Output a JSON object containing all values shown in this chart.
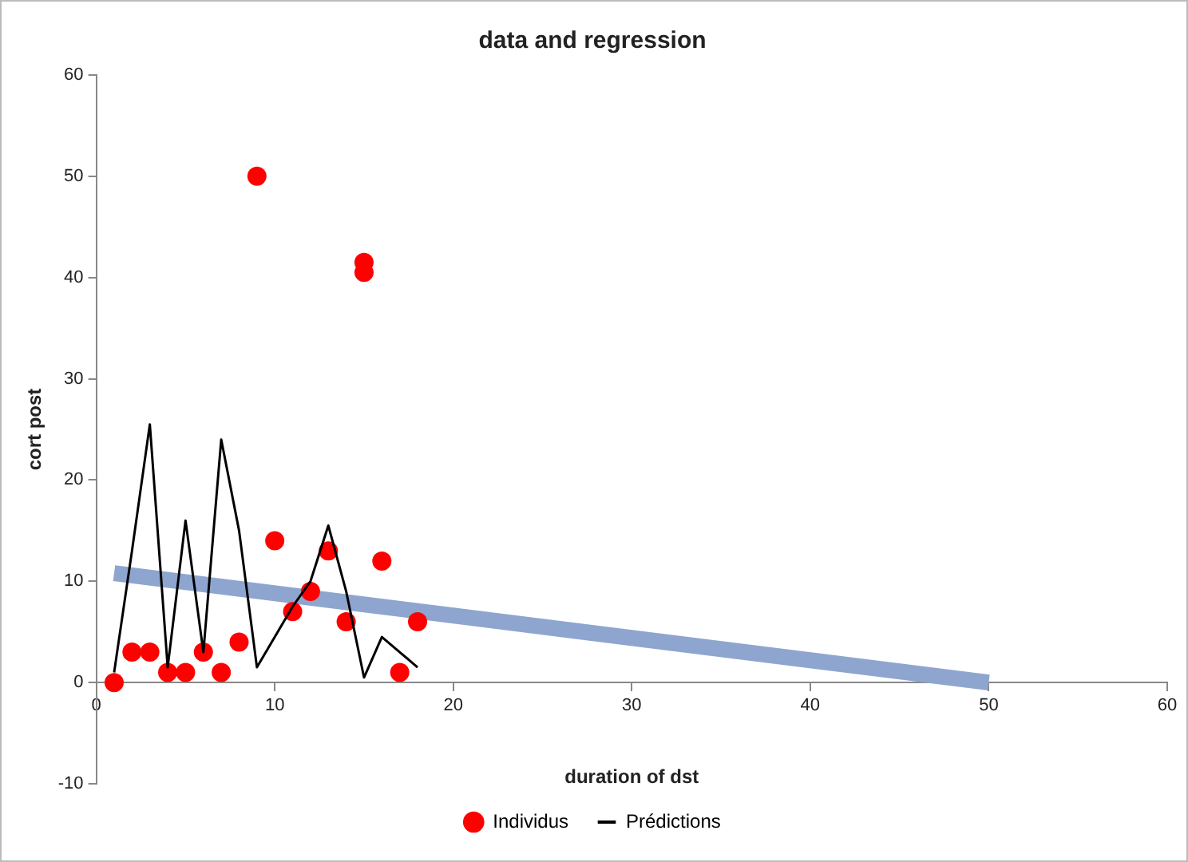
{
  "chart_data": {
    "type": "scatter",
    "title": "data and regression",
    "xlabel": "duration of dst",
    "ylabel": "cort post",
    "xlim": [
      0,
      60
    ],
    "xticks": [
      0,
      10,
      20,
      30,
      40,
      50,
      60
    ],
    "ylim": [
      -10,
      60
    ],
    "yticks": [
      -10,
      0,
      10,
      20,
      30,
      40,
      50,
      60
    ],
    "grid": false,
    "legend": "bottom",
    "series": [
      {
        "type": "line",
        "color": "#8ea5cf",
        "marker": "none",
        "x": [
          1,
          50
        ],
        "values": [
          10.8,
          0
        ]
      },
      {
        "name": "Individus",
        "type": "scatter",
        "color": "#ff0000",
        "marker": "circle",
        "x": [
          1,
          2,
          3,
          4,
          5,
          6,
          7,
          8,
          9,
          10,
          11,
          12,
          13,
          14,
          15,
          15,
          16,
          17,
          18
        ],
        "values": [
          0,
          3,
          3,
          1,
          1,
          3,
          1,
          4,
          50,
          14,
          7,
          9,
          13,
          6,
          41.5,
          40.5,
          12,
          1,
          6
        ]
      },
      {
        "name": "Prédictions",
        "type": "line",
        "color": "#000000",
        "marker": "none",
        "line_style": "solid",
        "x": [
          1,
          2,
          3,
          4,
          5,
          6,
          7,
          8,
          9,
          10,
          11,
          12,
          13,
          14,
          15,
          16,
          17,
          18
        ],
        "values": [
          1,
          13,
          25.5,
          1.5,
          16,
          3,
          24,
          15,
          1.5,
          4.5,
          7.5,
          10,
          15.5,
          9,
          0.5,
          4.5,
          3,
          1.5
        ]
      }
    ]
  }
}
